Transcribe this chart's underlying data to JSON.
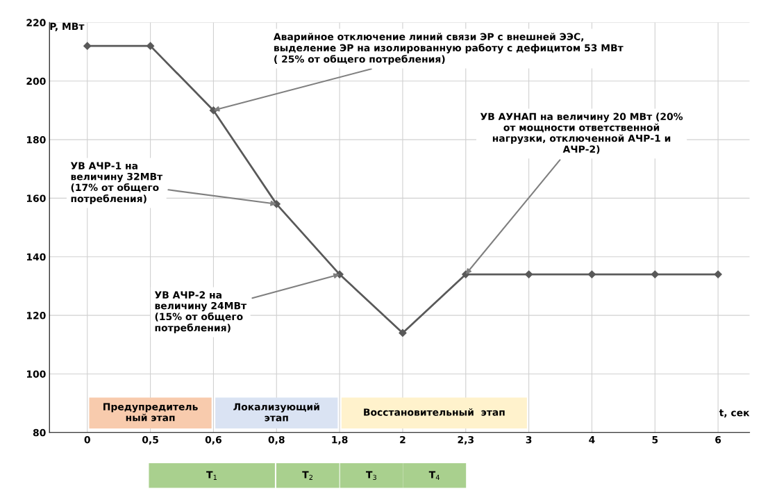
{
  "chart_data": {
    "type": "line",
    "categories": [
      "0",
      "0,5",
      "0,6",
      "0,8",
      "1,8",
      "2",
      "2,3",
      "3",
      "4",
      "5",
      "6"
    ],
    "series": [
      {
        "color": "#595959",
        "values": [
          212,
          212,
          190,
          158,
          134,
          114,
          134,
          134,
          134,
          134,
          134
        ]
      }
    ],
    "ylabel": "P, МВт",
    "xlabel": "t, сек",
    "ylim": [
      80,
      220
    ],
    "yticks": [
      80,
      100,
      120,
      140,
      160,
      180,
      200,
      220
    ],
    "grid": true,
    "marker": "diamond",
    "line_style": "solid",
    "annotations": [
      {
        "text": "Аварийное отключение линий связи ЭР с внешней ЭЭС,\nвыделение ЭР на изолированную работу с дефицитом 53 МВт\n( 25% от общего потребления)",
        "x": "0,6",
        "y": 190
      },
      {
        "text": "УВ АЧР-1 на\nвеличину 32МВт\n(17% от общего\nпотребления)",
        "x": "0,8",
        "y": 158
      },
      {
        "text": "УВ АЧР-2 на\nвеличину 24МВт\n(15% от общего\nпотребления)",
        "x": "1,8",
        "y": 134
      },
      {
        "text": "УВ АУНАП на величину 20 МВт (20%\nот мощности ответственной\nнагрузки, отключенной АЧР-1 и\nАЧР-2)",
        "x": "2,3",
        "y": 134
      },
      "T$_{1}$",
      "T$_{2}$",
      "T$_{3}$",
      "T$_{4}$"
    ],
    "bands": [
      {
        "axis": "x",
        "from": "0",
        "to": "0,6",
        "label": "Предупредитель\nный этап",
        "color": "#f8cbad"
      },
      {
        "axis": "x",
        "from": "0,6",
        "to": "1,8",
        "label": "Локализующий\nэтап",
        "color": "#dae3f3"
      },
      {
        "axis": "x",
        "from": "1,8",
        "to": "3",
        "label": "Восстановительный  этап",
        "color": "#fff2cc"
      }
    ]
  }
}
